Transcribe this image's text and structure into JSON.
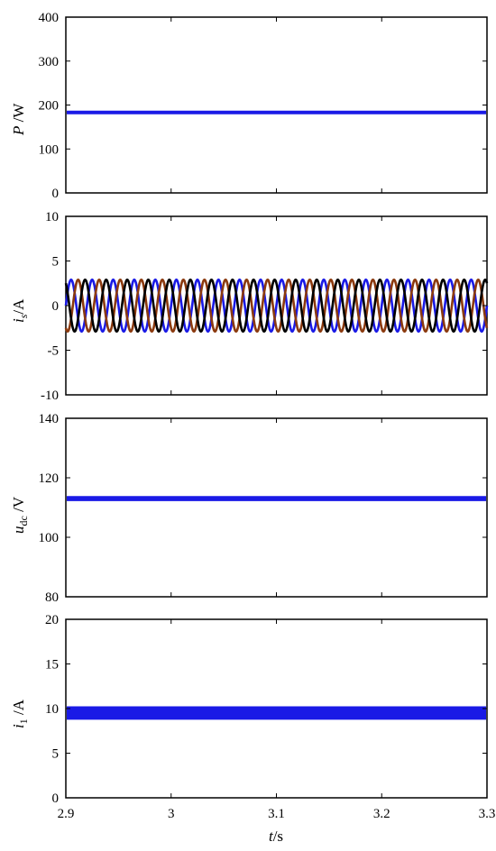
{
  "chart_data": [
    {
      "type": "line",
      "ylabel": "P /W",
      "ylim": [
        0,
        400
      ],
      "yticks": [
        "0",
        "100",
        "200",
        "300",
        "400"
      ],
      "xlim": [
        2.9,
        3.3
      ],
      "series": [
        {
          "color": "#1a1ae6",
          "value": 183,
          "kind": "constant"
        }
      ]
    },
    {
      "type": "line",
      "ylabel": "is/A",
      "ylabel_main": "i",
      "ylabel_sub": "s",
      "ylabel_unit": "/A",
      "ylim": [
        -10,
        10
      ],
      "yticks": [
        "-10",
        "-5",
        "0",
        "5",
        "10"
      ],
      "xlim": [
        2.9,
        3.3
      ],
      "series": [
        {
          "color": "#1a1ae6",
          "amplitude": 2.9,
          "frequency_hz": 50,
          "phase_deg": 0,
          "kind": "sine"
        },
        {
          "color": "#8b3a0f",
          "amplitude": 2.9,
          "frequency_hz": 50,
          "phase_deg": -120,
          "kind": "sine"
        },
        {
          "color": "#000000",
          "amplitude": 2.9,
          "frequency_hz": 50,
          "phase_deg": 120,
          "kind": "sine"
        }
      ]
    },
    {
      "type": "line",
      "ylabel": "udc /V",
      "ylabel_main": "u",
      "ylabel_sub": "dc",
      "ylabel_unit": " /V",
      "ylim": [
        80,
        140
      ],
      "yticks": [
        "80",
        "100",
        "120",
        "140"
      ],
      "xlim": [
        2.9,
        3.3
      ],
      "series": [
        {
          "color": "#1a1ae6",
          "value": 113,
          "ripple": 0.4,
          "kind": "constant"
        }
      ]
    },
    {
      "type": "line",
      "ylabel": "i1 /A",
      "ylabel_main": "i",
      "ylabel_sub": "1",
      "ylabel_unit": " /A",
      "ylim": [
        0,
        20
      ],
      "yticks": [
        "0",
        "5",
        "10",
        "15",
        "20"
      ],
      "xlim": [
        2.9,
        3.3
      ],
      "xticks": [
        "2.9",
        "3",
        "3.1",
        "3.2",
        "3.3"
      ],
      "xlabel": "t/s",
      "series": [
        {
          "color": "#1a1ae6",
          "value": 9.5,
          "ripple": 0.6,
          "kind": "constant"
        }
      ]
    }
  ]
}
